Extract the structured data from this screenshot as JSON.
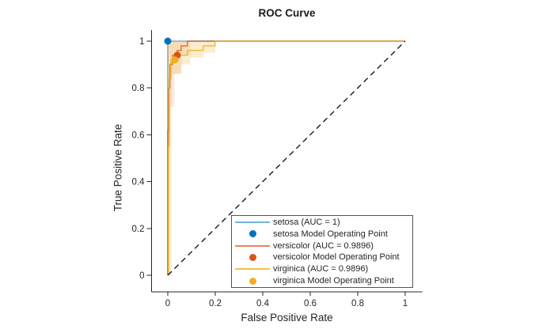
{
  "figure": {
    "background": "#ffffff",
    "axis_color": "#262626"
  },
  "chart_data": {
    "type": "line",
    "title": "ROC Curve",
    "xlabel": "False Positive Rate",
    "ylabel": "True Positive Rate",
    "xlim": [
      -0.07,
      1.07
    ],
    "ylim": [
      -0.07,
      1.05
    ],
    "grid": false,
    "legend_position": "inside-lower-right",
    "x_ticks": {
      "values": [
        0,
        0.2,
        0.4,
        0.6,
        0.8,
        1
      ],
      "labels": [
        "0",
        "0.2",
        "0.4",
        "0.6",
        "0.8",
        "1"
      ]
    },
    "y_ticks": {
      "values": [
        0,
        0.2,
        0.4,
        0.6,
        0.8,
        1
      ],
      "labels": [
        "0",
        "0.2",
        "0.4",
        "0.6",
        "0.8",
        "1"
      ]
    },
    "series": [
      {
        "name": "setosa (AUC = 1)",
        "kind": "line",
        "color": "#0072BD",
        "line_rgba": "rgba(0,114,189,0.55)",
        "auc": 1,
        "points": [
          [
            0,
            0
          ],
          [
            0,
            1
          ],
          [
            1,
            1
          ]
        ]
      },
      {
        "name": "setosa Model Operating Point",
        "kind": "marker",
        "color": "#0072BD",
        "point": [
          0,
          1
        ]
      },
      {
        "name": "versicolor (AUC = 0.9896)",
        "kind": "line",
        "color": "#D95319",
        "line_rgba": "rgba(217,83,25,0.7)",
        "auc": 0.9896,
        "points": [
          [
            0,
            0
          ],
          [
            0,
            0.62
          ],
          [
            0.004,
            0.62
          ],
          [
            0.004,
            0.8
          ],
          [
            0.009,
            0.8
          ],
          [
            0.009,
            0.9
          ],
          [
            0.02,
            0.9
          ],
          [
            0.02,
            0.94
          ],
          [
            0.04,
            0.94
          ],
          [
            0.04,
            0.96
          ],
          [
            0.056,
            0.96
          ],
          [
            0.056,
            0.98
          ],
          [
            0.083,
            0.98
          ],
          [
            0.083,
            1
          ],
          [
            1,
            1
          ]
        ]
      },
      {
        "name": "versicolor Model Operating Point",
        "kind": "marker",
        "color": "#D95319",
        "point": [
          0.04,
          0.94
        ]
      },
      {
        "name": "virginica (AUC = 0.9896)",
        "kind": "line",
        "color": "#EDB120",
        "line_rgba": "rgba(237,177,32,0.8)",
        "auc": 0.9896,
        "points": [
          [
            0.003,
            0
          ],
          [
            0.003,
            0.55
          ],
          [
            0.006,
            0.55
          ],
          [
            0.006,
            0.84
          ],
          [
            0.013,
            0.84
          ],
          [
            0.013,
            0.92
          ],
          [
            0.03,
            0.92
          ],
          [
            0.03,
            0.94
          ],
          [
            0.083,
            0.94
          ],
          [
            0.083,
            0.96
          ],
          [
            0.149,
            0.96
          ],
          [
            0.149,
            0.98
          ],
          [
            0.199,
            0.98
          ],
          [
            0.199,
            1
          ],
          [
            1,
            1
          ]
        ]
      },
      {
        "name": "virginica Model Operating Point",
        "kind": "marker",
        "color": "#EDB120",
        "point": [
          0.03,
          0.92
        ]
      }
    ],
    "reference_line": {
      "style": "dashed",
      "color": "#1a1a1a",
      "points": [
        [
          0,
          0
        ],
        [
          1,
          1
        ]
      ]
    },
    "confidence_bands": [
      {
        "class": "versicolor",
        "fill": "rgba(217,83,25,0.13)",
        "rects": [
          [
            0,
            0.01,
            0.58,
            1
          ],
          [
            0.01,
            0.028,
            0.72,
            1
          ],
          [
            0.028,
            0.058,
            0.86,
            1
          ],
          [
            0.058,
            0.095,
            0.94,
            1
          ]
        ]
      },
      {
        "class": "virginica",
        "fill": "rgba(237,177,32,0.22)",
        "rects": [
          [
            0,
            0.016,
            0,
            1
          ],
          [
            0.016,
            0.055,
            0.86,
            1
          ],
          [
            0.055,
            0.095,
            0.9,
            1
          ],
          [
            0.095,
            0.15,
            0.93,
            1
          ],
          [
            0.15,
            0.2,
            0.95,
            1
          ]
        ]
      }
    ]
  },
  "legend": {
    "items": [
      {
        "type": "line",
        "color": "rgba(0,114,189,0.55)"
      },
      {
        "type": "marker",
        "color": "#0072BD"
      },
      {
        "type": "line",
        "color": "rgba(217,83,25,0.7)"
      },
      {
        "type": "marker",
        "color": "#D95319"
      },
      {
        "type": "line",
        "color": "rgba(237,177,32,0.8)"
      },
      {
        "type": "marker",
        "color": "#EDB120"
      }
    ]
  }
}
